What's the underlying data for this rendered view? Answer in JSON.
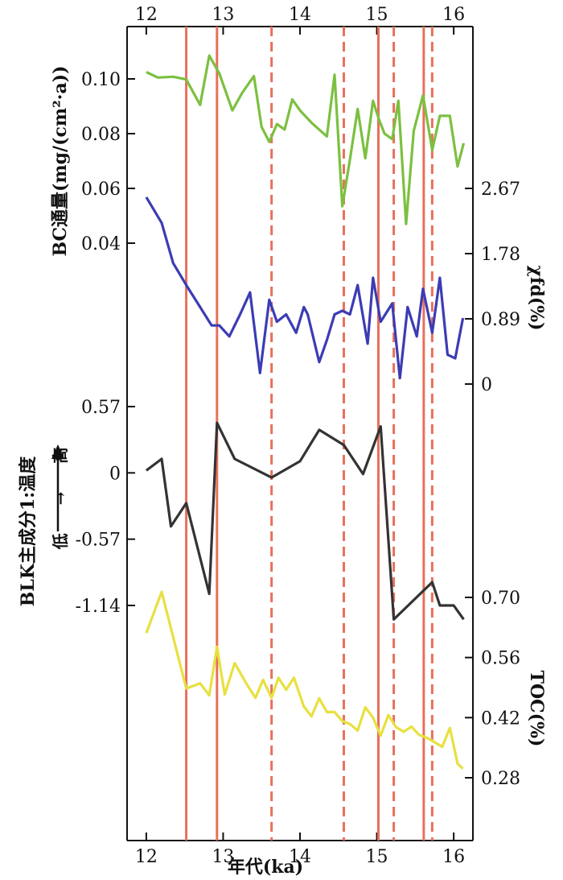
{
  "chart_data": {
    "type": "line",
    "x_axis": {
      "label": "年代(ka)",
      "range": [
        11.75,
        16.25
      ],
      "ticks": [
        12,
        13,
        14,
        15,
        16
      ],
      "tick_labels": [
        "12",
        "13",
        "14",
        "15",
        "16"
      ]
    },
    "event_lines": {
      "solid": [
        12.52,
        12.92,
        15.02,
        15.61
      ],
      "dashed": [
        13.63,
        14.57,
        15.22,
        15.72
      ],
      "color": "#e8705c"
    },
    "series": [
      {
        "name": "BC通量",
        "color": "#7cc040",
        "axis_label": "BC通量(mg/(cm²·a))",
        "axis_side": "left",
        "axis_ticks": [
          0.04,
          0.06,
          0.08,
          0.1
        ],
        "axis_tick_labels": [
          "0.04",
          "0.06",
          "0.08",
          "0.10"
        ],
        "x": [
          12.0,
          12.15,
          12.35,
          12.52,
          12.7,
          12.82,
          12.95,
          13.12,
          13.25,
          13.4,
          13.5,
          13.6,
          13.7,
          13.8,
          13.9,
          14.0,
          14.15,
          14.35,
          14.45,
          14.55,
          14.65,
          14.75,
          14.85,
          14.95,
          15.03,
          15.1,
          15.2,
          15.28,
          15.38,
          15.48,
          15.6,
          15.72,
          15.82,
          15.95,
          16.05,
          16.13
        ],
        "y": [
          0.1025,
          0.1005,
          0.1008,
          0.0998,
          0.0905,
          0.1085,
          0.102,
          0.0885,
          0.095,
          0.101,
          0.0825,
          0.077,
          0.0835,
          0.0815,
          0.0925,
          0.0885,
          0.084,
          0.079,
          0.1015,
          0.0535,
          0.0705,
          0.089,
          0.071,
          0.092,
          0.085,
          0.08,
          0.078,
          0.092,
          0.047,
          0.081,
          0.094,
          0.074,
          0.0865,
          0.0865,
          0.068,
          0.0765
        ]
      },
      {
        "name": "χfd",
        "color": "#3c3cb4",
        "axis_label": "χfd(%)",
        "axis_side": "right",
        "axis_ticks": [
          0,
          0.89,
          1.78,
          2.67
        ],
        "axis_tick_labels": [
          "0",
          "0.89",
          "1.78",
          "2.67"
        ],
        "x": [
          12.0,
          12.2,
          12.35,
          12.52,
          12.7,
          12.85,
          12.95,
          13.08,
          13.22,
          13.35,
          13.48,
          13.6,
          13.7,
          13.82,
          13.95,
          14.05,
          14.1,
          14.25,
          14.35,
          14.45,
          14.55,
          14.65,
          14.75,
          14.88,
          14.95,
          15.05,
          15.2,
          15.3,
          15.4,
          15.52,
          15.6,
          15.72,
          15.82,
          15.92,
          16.02,
          16.12
        ],
        "y": [
          2.55,
          2.2,
          1.65,
          1.35,
          1.05,
          0.8,
          0.8,
          0.65,
          0.95,
          1.25,
          0.15,
          1.15,
          0.85,
          0.95,
          0.7,
          1.05,
          0.95,
          0.3,
          0.6,
          0.95,
          1.0,
          0.95,
          1.35,
          0.55,
          1.45,
          0.85,
          1.1,
          0.08,
          1.05,
          0.65,
          1.3,
          0.7,
          1.45,
          0.4,
          0.35,
          0.9
        ]
      },
      {
        "name": "BLK主成分1:温度",
        "color": "#333333",
        "axis_label": "BLK主成分1:温度",
        "axis_side": "left",
        "axis_annotation": "低 → 高",
        "axis_ticks": [
          -1.14,
          -0.57,
          0,
          0.57
        ],
        "axis_tick_labels": [
          "-1.14",
          "-0.57",
          "0",
          "0.57"
        ],
        "x": [
          12.0,
          12.2,
          12.32,
          12.52,
          12.82,
          12.92,
          13.15,
          13.63,
          14.0,
          14.25,
          14.57,
          14.82,
          15.05,
          15.22,
          15.72,
          15.82,
          16.0,
          16.13
        ],
        "y": [
          0.02,
          0.12,
          -0.46,
          -0.26,
          -1.04,
          0.43,
          0.12,
          -0.04,
          0.1,
          0.37,
          0.24,
          -0.01,
          0.4,
          -1.26,
          -0.94,
          -1.14,
          -1.14,
          -1.26
        ]
      },
      {
        "name": "TOC",
        "color": "#e8e040",
        "axis_label": "TOC(%)",
        "axis_side": "right",
        "axis_ticks": [
          0.28,
          0.42,
          0.56,
          0.7
        ],
        "axis_tick_labels": [
          "0.28",
          "0.42",
          "0.56",
          "0.70"
        ],
        "x": [
          12.0,
          12.2,
          12.52,
          12.7,
          12.82,
          12.92,
          13.02,
          13.15,
          13.3,
          13.42,
          13.52,
          13.63,
          13.72,
          13.82,
          13.92,
          14.05,
          14.15,
          14.25,
          14.35,
          14.45,
          14.55,
          14.65,
          14.75,
          14.85,
          14.95,
          15.05,
          15.15,
          15.25,
          15.35,
          15.45,
          15.55,
          15.65,
          15.75,
          15.85,
          15.95,
          16.05,
          16.12
        ],
        "y": [
          0.617,
          0.713,
          0.488,
          0.5,
          0.472,
          0.585,
          0.474,
          0.547,
          0.5,
          0.466,
          0.508,
          0.466,
          0.513,
          0.485,
          0.513,
          0.446,
          0.423,
          0.465,
          0.433,
          0.433,
          0.412,
          0.405,
          0.39,
          0.444,
          0.42,
          0.378,
          0.426,
          0.398,
          0.387,
          0.399,
          0.38,
          0.373,
          0.363,
          0.352,
          0.396,
          0.313,
          0.301
        ]
      }
    ]
  }
}
